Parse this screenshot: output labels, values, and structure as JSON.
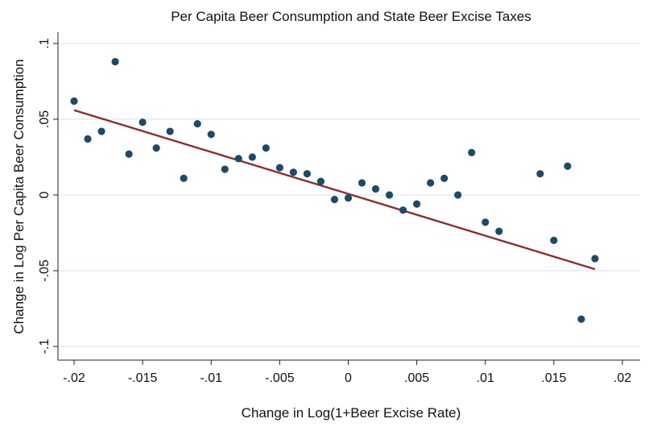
{
  "chart_data": {
    "type": "scatter",
    "title": "Per Capita Beer Consumption and State Beer Excise Taxes",
    "xlabel": "Change in Log(1+Beer Excise Rate)",
    "ylabel": "Change in Log Per Capita Beer Consumption",
    "xlim": [
      -0.02,
      0.02
    ],
    "ylim": [
      -0.1,
      0.1
    ],
    "xticks": [
      {
        "value": -0.02,
        "label": "-.02"
      },
      {
        "value": -0.015,
        "label": "-.015"
      },
      {
        "value": -0.01,
        "label": "-.01"
      },
      {
        "value": -0.005,
        "label": "-.005"
      },
      {
        "value": 0,
        "label": "0"
      },
      {
        "value": 0.005,
        "label": ".005"
      },
      {
        "value": 0.01,
        "label": ".01"
      },
      {
        "value": 0.015,
        "label": ".015"
      },
      {
        "value": 0.02,
        "label": ".02"
      }
    ],
    "yticks": [
      {
        "value": -0.1,
        "label": "-.1"
      },
      {
        "value": -0.05,
        "label": "-.05"
      },
      {
        "value": 0,
        "label": "0"
      },
      {
        "value": 0.05,
        "label": ".05"
      },
      {
        "value": 0.1,
        "label": ".1"
      }
    ],
    "grid": "horizontal",
    "points": [
      {
        "x": -0.02,
        "y": 0.062
      },
      {
        "x": -0.019,
        "y": 0.037
      },
      {
        "x": -0.018,
        "y": 0.042
      },
      {
        "x": -0.017,
        "y": 0.088
      },
      {
        "x": -0.016,
        "y": 0.027
      },
      {
        "x": -0.015,
        "y": 0.048
      },
      {
        "x": -0.014,
        "y": 0.031
      },
      {
        "x": -0.013,
        "y": 0.042
      },
      {
        "x": -0.012,
        "y": 0.011
      },
      {
        "x": -0.011,
        "y": 0.047
      },
      {
        "x": -0.01,
        "y": 0.04
      },
      {
        "x": -0.009,
        "y": 0.017
      },
      {
        "x": -0.008,
        "y": 0.024
      },
      {
        "x": -0.007,
        "y": 0.025
      },
      {
        "x": -0.006,
        "y": 0.031
      },
      {
        "x": -0.005,
        "y": 0.018
      },
      {
        "x": -0.004,
        "y": 0.015
      },
      {
        "x": -0.003,
        "y": 0.014
      },
      {
        "x": -0.002,
        "y": 0.009
      },
      {
        "x": -0.001,
        "y": -0.003
      },
      {
        "x": 0.0,
        "y": -0.002
      },
      {
        "x": 0.001,
        "y": 0.008
      },
      {
        "x": 0.002,
        "y": 0.004
      },
      {
        "x": 0.003,
        "y": 0.0
      },
      {
        "x": 0.004,
        "y": -0.01
      },
      {
        "x": 0.005,
        "y": -0.006
      },
      {
        "x": 0.006,
        "y": 0.008
      },
      {
        "x": 0.007,
        "y": 0.011
      },
      {
        "x": 0.008,
        "y": 0.0
      },
      {
        "x": 0.009,
        "y": 0.028
      },
      {
        "x": 0.01,
        "y": -0.018
      },
      {
        "x": 0.011,
        "y": -0.024
      },
      {
        "x": 0.014,
        "y": 0.014
      },
      {
        "x": 0.015,
        "y": -0.03
      },
      {
        "x": 0.016,
        "y": 0.019
      },
      {
        "x": 0.017,
        "y": -0.082
      },
      {
        "x": 0.018,
        "y": -0.042
      }
    ],
    "fit_line": {
      "x": [
        -0.02,
        0.018
      ],
      "y": [
        0.056,
        -0.049
      ]
    },
    "colors": {
      "points": "#1d4a6a",
      "fit_line": "#8b2e2e",
      "grid": "#e4ecf0"
    }
  }
}
